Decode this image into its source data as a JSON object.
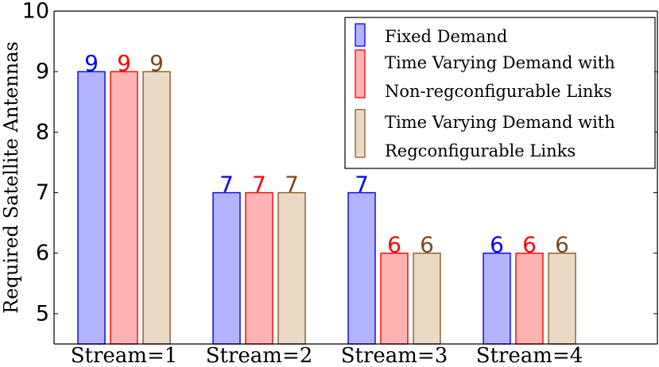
{
  "chart_data": {
    "type": "bar",
    "categories": [
      "Stream=1",
      "Stream=2",
      "Stream=3",
      "Stream=4"
    ],
    "series": [
      {
        "name_lines": [
          "Fixed Demand"
        ],
        "values": [
          9,
          7,
          7,
          6
        ],
        "fill": "#b3b3ff",
        "stroke": "#0000ff",
        "label_color": "#0000ff"
      },
      {
        "name_lines": [
          "Time Varying Demand with",
          "Non-regconfigurable Links"
        ],
        "values": [
          9,
          7,
          6,
          6
        ],
        "fill": "#ffb3b3",
        "stroke": "#ff0000",
        "label_color": "#ff0000"
      },
      {
        "name_lines": [
          "Time Varying Demand with",
          "Regconfigurable Links"
        ],
        "values": [
          9,
          7,
          6,
          6
        ],
        "fill": "#ead9c4",
        "stroke": "#8b5a2b",
        "label_color": "#7a4a24"
      }
    ],
    "ylabel": "Required Satellite Antennas",
    "xlabel": "",
    "ylim": [
      4.5,
      10
    ],
    "yticks": [
      5,
      6,
      7,
      8,
      9,
      10
    ],
    "grid": false,
    "legend_position": "top-right"
  }
}
